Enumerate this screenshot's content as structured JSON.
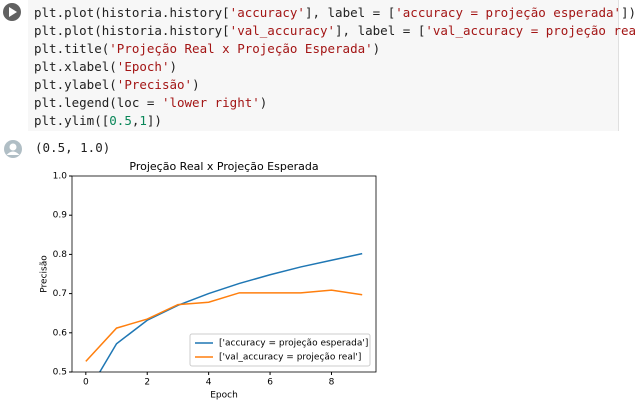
{
  "code": {
    "lines": [
      [
        "plt.plot(historia.history[",
        "'accuracy'",
        "], label = [",
        "'accuracy = projeção esperada'",
        "])"
      ],
      [
        "plt.plot(historia.history[",
        "'val_accuracy'",
        "], label = [",
        "'val_accuracy = projeção real'",
        "])"
      ],
      [
        "plt.title(",
        "'Projeção Real x Projeção Esperada'",
        ")"
      ],
      [
        "plt.xlabel(",
        "'Epoch'",
        ")"
      ],
      [
        "plt.ylabel(",
        "'Precisão'",
        ")"
      ],
      [
        "plt.legend(loc = ",
        "'lower right'",
        ")"
      ],
      [
        "plt.ylim([",
        "0.5",
        ",",
        "1",
        "])"
      ]
    ]
  },
  "output": {
    "text": "(0.5, 1.0)"
  },
  "chart_data": {
    "type": "line",
    "title": "Projeção Real x Projeção Esperada",
    "x_label": "Epoch",
    "y_label": "Precisão",
    "x": [
      0,
      1,
      2,
      3,
      4,
      5,
      6,
      7,
      8,
      9
    ],
    "series": [
      {
        "name": "['accuracy = projeção esperada']",
        "color": "#1f77b4",
        "values": [
          0.44,
          0.572,
          0.632,
          0.67,
          0.7,
          0.726,
          0.748,
          0.768,
          0.785,
          0.802
        ]
      },
      {
        "name": "['val_accuracy = projeção real']",
        "color": "#ff7f0e",
        "values": [
          0.527,
          0.612,
          0.635,
          0.672,
          0.678,
          0.702,
          0.702,
          0.702,
          0.709,
          0.697
        ]
      }
    ],
    "xlim": [
      -0.45,
      9.45
    ],
    "xticks": [
      0,
      2,
      4,
      6,
      8
    ],
    "ylim": [
      0.5,
      1
    ],
    "yticks": [
      0.5,
      0.6,
      0.7,
      0.8,
      0.9,
      {
        "value": 1,
        "label": "1.0"
      }
    ],
    "legend": "lower right"
  }
}
